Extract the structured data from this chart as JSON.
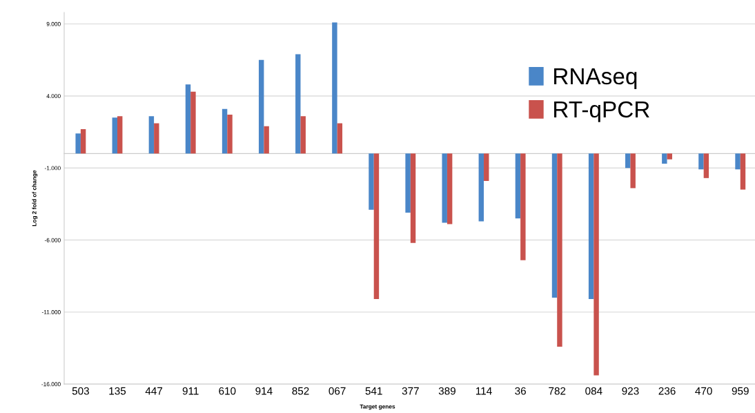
{
  "chart_data": {
    "type": "bar",
    "xlabel": "Target genes",
    "ylabel": "Log 2 fold of change",
    "categories": [
      "503",
      "135",
      "447",
      "911",
      "610",
      "914",
      "852",
      "067",
      "541",
      "377",
      "389",
      "114",
      "36",
      "782",
      "084",
      "923",
      "236",
      "470",
      "959"
    ],
    "series": [
      {
        "name": "RNAseq",
        "color": "#4a86c8",
        "values": [
          1.4,
          2.5,
          2.6,
          4.8,
          3.1,
          6.5,
          6.9,
          9.1,
          -3.9,
          -4.1,
          -4.8,
          -4.7,
          -4.5,
          -10.0,
          -10.1,
          -1.0,
          -0.7,
          -1.1,
          -1.1
        ]
      },
      {
        "name": "RT-qPCR",
        "color": "#c9524d",
        "values": [
          1.7,
          2.6,
          2.1,
          4.3,
          2.7,
          1.9,
          2.6,
          2.1,
          -10.1,
          -6.2,
          -4.9,
          -1.9,
          -7.4,
          -13.4,
          -15.4,
          -2.4,
          -0.4,
          -1.7,
          -2.5
        ]
      }
    ],
    "ylim": [
      -16,
      9.8
    ],
    "yticks": [
      {
        "value": -16,
        "label": "-16.000"
      },
      {
        "value": -11,
        "label": "-11.000"
      },
      {
        "value": -6,
        "label": "-6.000"
      },
      {
        "value": -1,
        "label": "-1.000"
      },
      {
        "value": 4,
        "label": "4.000"
      },
      {
        "value": 9,
        "label": "9.000"
      }
    ],
    "grid": "y",
    "legend": "top right"
  }
}
